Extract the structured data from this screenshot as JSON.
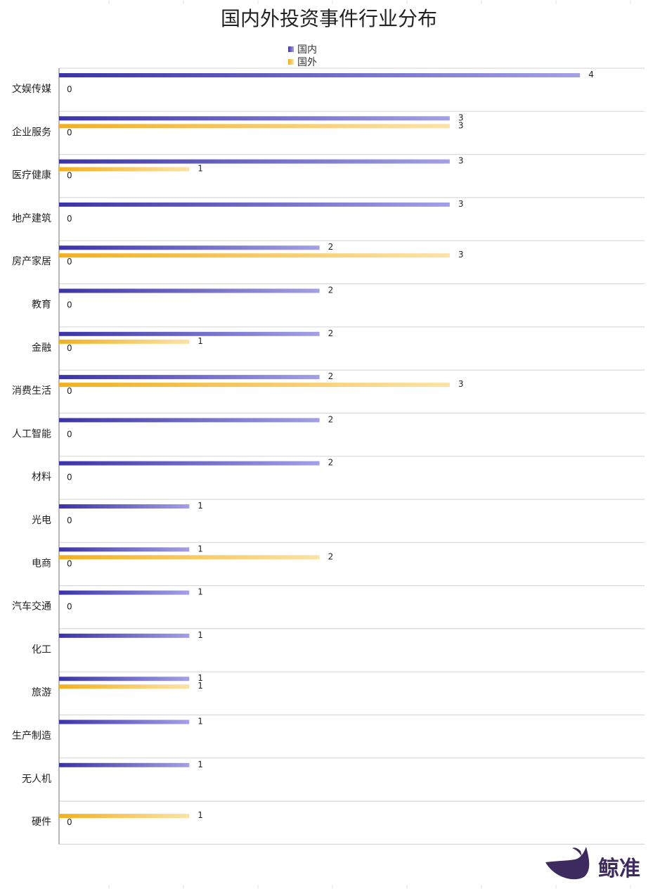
{
  "chart_data": {
    "type": "bar",
    "orientation": "horizontal",
    "title": "国内外投资事件行业分布",
    "categories": [
      "文娱传媒",
      "企业服务",
      "医疗健康",
      "地产建筑",
      "房产家居",
      "教育",
      "金融",
      "消费生活",
      "人工智能",
      "材料",
      "光电",
      "电商",
      "汽车交通",
      "化工",
      "旅游",
      "生产制造",
      "无人机",
      "硬件"
    ],
    "series": [
      {
        "name": "国内",
        "color": "#4a42b8",
        "values": [
          4,
          3,
          3,
          3,
          2,
          2,
          2,
          2,
          2,
          2,
          1,
          1,
          1,
          1,
          1,
          1,
          1,
          null
        ]
      },
      {
        "name": "国外",
        "color": "#f5b82e",
        "values": [
          null,
          3,
          1,
          null,
          3,
          null,
          1,
          3,
          null,
          null,
          null,
          2,
          null,
          null,
          1,
          null,
          null,
          1
        ]
      }
    ],
    "zero_labels": [
      true,
      true,
      true,
      true,
      true,
      true,
      true,
      true,
      true,
      true,
      true,
      true,
      true,
      false,
      false,
      false,
      false,
      true
    ],
    "xlim": [
      0,
      4.5
    ],
    "legend_position": "top-center",
    "grid": true
  },
  "brand": {
    "name": "鲸准",
    "color": "#3d2a5e"
  }
}
